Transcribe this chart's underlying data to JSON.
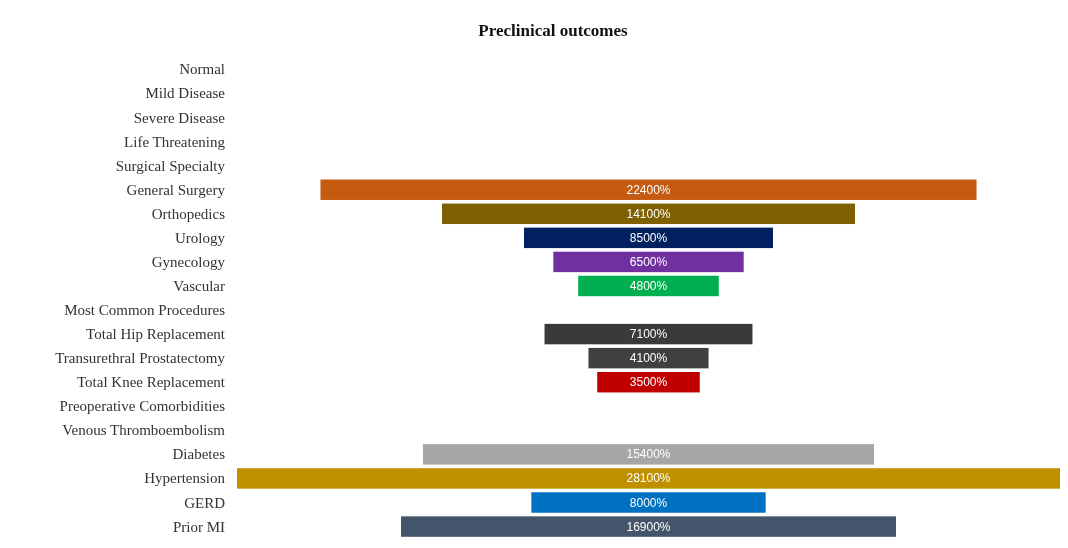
{
  "chart_data": {
    "type": "other",
    "title": "Preclinical outcomes",
    "categories": [
      "Normal",
      "Mild Disease",
      "Severe Disease",
      "Life Threatening",
      "Surgical Specialty",
      "General Surgery",
      "Orthopedics",
      "Urology",
      "Gynecology",
      "Vascular",
      "Most Common Procedures",
      "Total Hip Replacement",
      "Transurethral Prostatectomy",
      "Total Knee Replacement",
      "Preoperative Comorbidities",
      "Venous Thromboembolism",
      "Diabetes",
      "Hypertension",
      "GERD",
      "Prior MI"
    ],
    "values": [
      null,
      null,
      null,
      null,
      null,
      22400,
      14100,
      8500,
      6500,
      4800,
      null,
      7100,
      4100,
      3500,
      null,
      null,
      15400,
      28100,
      8000,
      16900
    ],
    "value_labels": [
      null,
      null,
      null,
      null,
      null,
      "22400%",
      "14100%",
      "8500%",
      "6500%",
      "4800%",
      null,
      "7100%",
      "4100%",
      "3500%",
      null,
      null,
      "15400%",
      "28100%",
      "8000%",
      "16900%"
    ],
    "colors": [
      null,
      null,
      null,
      null,
      null,
      "#c55a11",
      "#7f6000",
      "#002060",
      "#7030a0",
      "#00b050",
      null,
      "#3a3a3a",
      "#404040",
      "#c00000",
      null,
      null,
      "#a6a6a6",
      "#bf9000",
      "#0070c0",
      "#44546a"
    ]
  }
}
